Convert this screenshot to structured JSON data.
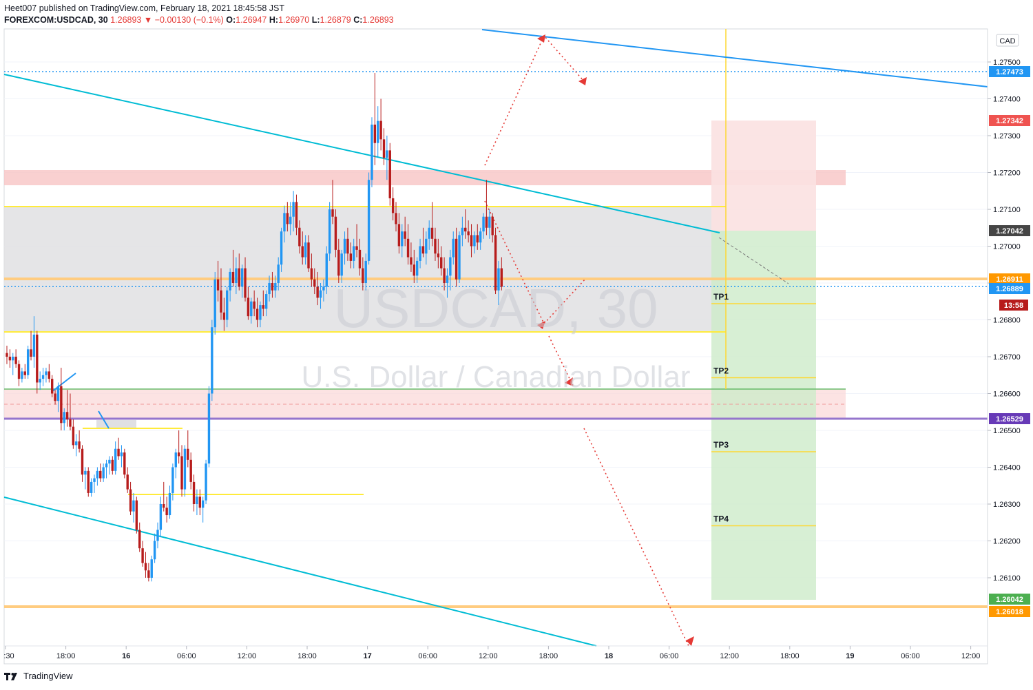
{
  "header": {
    "line1": "Heet007 published on TradingView.com, February 18, 2021 18:45:58 JST",
    "symbol": "FOREXCOM:USDCAD, 30",
    "last": "1.26893",
    "change": "−0.00130 (−0.1%)",
    "o_label": "O:",
    "o": "1.26947",
    "h_label": "H:",
    "h": "1.26970",
    "l_label": "L:",
    "l": "1.26879",
    "c_label": "C:",
    "c": "1.26893"
  },
  "watermark": {
    "line1": "USDCAD, 30",
    "line2": "U.S. Dollar / Canadian Dollar"
  },
  "footer": {
    "brand": "TradingView"
  },
  "colors": {
    "up": "#2196f3",
    "down": "#b71c1c",
    "trend": "#00bcd4",
    "yellow": "#ffeb3b",
    "orange": "#ffb74d",
    "purple": "#9575cd",
    "green_zone": "#c8e6c9",
    "red_zone": "#ffcdd2"
  },
  "chart_data": {
    "type": "candlestick",
    "currency": "CAD",
    "ylim": [
      1.2562,
      1.2754
    ],
    "y_ticks": [
      "1.27500",
      "1.27400",
      "1.27300",
      "1.27200",
      "1.27100",
      "1.27000",
      "1.26900",
      "1.26800",
      "1.26700",
      "1.26600",
      "1.26500",
      "1.26400",
      "1.26300",
      "1.26200",
      "1.26100"
    ],
    "x_ticks": [
      ":30",
      "18:00",
      "16",
      "06:00",
      "12:00",
      "18:00",
      "17",
      "06:00",
      "12:00",
      "18:00",
      "18",
      "06:00",
      "12:00",
      "18:00",
      "19",
      "06:00",
      "12:00"
    ],
    "price_tags": [
      {
        "label": "1.27473",
        "value": 1.27473,
        "color": "#2196f3"
      },
      {
        "label": "1.27342",
        "value": 1.27342,
        "color": "#ef5350"
      },
      {
        "label": "1.27042",
        "value": 1.27042,
        "color": "#454545"
      },
      {
        "label": "1.26911",
        "value": 1.26911,
        "color": "#ff9800"
      },
      {
        "label": "1.26889",
        "value": 1.26889,
        "color": "#2196f3"
      },
      {
        "label": "13:58",
        "value": 1.2686,
        "color": "#b71c1c"
      },
      {
        "label": "1.26529",
        "value": 1.26529,
        "color": "#673ab7"
      },
      {
        "label": "1.26042",
        "value": 1.26042,
        "color": "#4caf50"
      },
      {
        "label": "1.26018",
        "value": 1.26018,
        "color": "#ff9800"
      }
    ],
    "targets": [
      {
        "label": "TP1",
        "value": 1.2685
      },
      {
        "label": "TP2",
        "value": 1.2665
      },
      {
        "label": "TP3",
        "value": 1.2645
      },
      {
        "label": "TP4",
        "value": 1.2625
      }
    ],
    "candles": [
      [
        1.2671,
        1.2673,
        1.2668,
        1.267
      ],
      [
        1.267,
        1.2672,
        1.2667,
        1.2669
      ],
      [
        1.2669,
        1.2671,
        1.2665,
        1.267
      ],
      [
        1.267,
        1.2672,
        1.2667,
        1.2668
      ],
      [
        1.2668,
        1.2669,
        1.2662,
        1.2664
      ],
      [
        1.2664,
        1.2667,
        1.2663,
        1.2666
      ],
      [
        1.2666,
        1.2668,
        1.2664,
        1.2665
      ],
      [
        1.2665,
        1.2673,
        1.2664,
        1.2672
      ],
      [
        1.2672,
        1.2677,
        1.2669,
        1.267
      ],
      [
        1.267,
        1.2681,
        1.2667,
        1.2676
      ],
      [
        1.2676,
        1.2677,
        1.266,
        1.2663
      ],
      [
        1.2663,
        1.2666,
        1.2661,
        1.2664
      ],
      [
        1.2664,
        1.2667,
        1.2662,
        1.2665
      ],
      [
        1.2665,
        1.2667,
        1.2663,
        1.2666
      ],
      [
        1.2666,
        1.2668,
        1.2663,
        1.2664
      ],
      [
        1.2664,
        1.2665,
        1.2659,
        1.266
      ],
      [
        1.266,
        1.2661,
        1.2657,
        1.2658
      ],
      [
        1.2658,
        1.2663,
        1.2655,
        1.2662
      ],
      [
        1.2662,
        1.2667,
        1.265,
        1.2652
      ],
      [
        1.2652,
        1.2656,
        1.265,
        1.2655
      ],
      [
        1.2655,
        1.2661,
        1.2651,
        1.2653
      ],
      [
        1.2653,
        1.266,
        1.265,
        1.2651
      ],
      [
        1.2651,
        1.2653,
        1.2645,
        1.2646
      ],
      [
        1.2646,
        1.2649,
        1.2643,
        1.2647
      ],
      [
        1.2647,
        1.265,
        1.2644,
        1.2645
      ],
      [
        1.2645,
        1.2646,
        1.2636,
        1.2638
      ],
      [
        1.2638,
        1.264,
        1.2634,
        1.2639
      ],
      [
        1.2639,
        1.264,
        1.2632,
        1.2633
      ],
      [
        1.2633,
        1.2637,
        1.2632,
        1.2636
      ],
      [
        1.2636,
        1.2638,
        1.2633,
        1.2637
      ],
      [
        1.2637,
        1.264,
        1.2635,
        1.2639
      ],
      [
        1.2639,
        1.2641,
        1.2636,
        1.2637
      ],
      [
        1.2637,
        1.2641,
        1.2636,
        1.264
      ],
      [
        1.264,
        1.2642,
        1.2637,
        1.2641
      ],
      [
        1.2641,
        1.2643,
        1.2638,
        1.2642
      ],
      [
        1.2642,
        1.2643,
        1.2638,
        1.2639
      ],
      [
        1.2639,
        1.2647,
        1.2638,
        1.2645
      ],
      [
        1.2645,
        1.2648,
        1.2642,
        1.2643
      ],
      [
        1.2643,
        1.2646,
        1.264,
        1.2644
      ],
      [
        1.2644,
        1.2645,
        1.2637,
        1.2638
      ],
      [
        1.2638,
        1.264,
        1.2633,
        1.2634
      ],
      [
        1.2634,
        1.2636,
        1.2627,
        1.2628
      ],
      [
        1.2628,
        1.2633,
        1.2625,
        1.2631
      ],
      [
        1.2631,
        1.2632,
        1.2622,
        1.2623
      ],
      [
        1.2623,
        1.2625,
        1.2617,
        1.2618
      ],
      [
        1.2618,
        1.262,
        1.2613,
        1.2614
      ],
      [
        1.2614,
        1.2617,
        1.261,
        1.2612
      ],
      [
        1.2612,
        1.2614,
        1.2609,
        1.261
      ],
      [
        1.261,
        1.2616,
        1.2609,
        1.2615
      ],
      [
        1.2615,
        1.2622,
        1.2614,
        1.262
      ],
      [
        1.262,
        1.2625,
        1.2618,
        1.2623
      ],
      [
        1.2623,
        1.2632,
        1.2621,
        1.263
      ],
      [
        1.263,
        1.2636,
        1.2628,
        1.2629
      ],
      [
        1.2629,
        1.2632,
        1.2625,
        1.2627
      ],
      [
        1.2627,
        1.2635,
        1.2626,
        1.2633
      ],
      [
        1.2633,
        1.2641,
        1.2631,
        1.264
      ],
      [
        1.264,
        1.2645,
        1.2637,
        1.2644
      ],
      [
        1.2644,
        1.265,
        1.2641,
        1.2643
      ],
      [
        1.2643,
        1.2646,
        1.2632,
        1.2634
      ],
      [
        1.2634,
        1.2646,
        1.2632,
        1.2645
      ],
      [
        1.2645,
        1.265,
        1.264,
        1.2642
      ],
      [
        1.2642,
        1.2644,
        1.2634,
        1.2636
      ],
      [
        1.2636,
        1.2638,
        1.2628,
        1.263
      ],
      [
        1.263,
        1.2634,
        1.2627,
        1.2632
      ],
      [
        1.2632,
        1.2634,
        1.2627,
        1.2629
      ],
      [
        1.2629,
        1.2632,
        1.2625,
        1.2631
      ],
      [
        1.2631,
        1.2642,
        1.263,
        1.2641
      ],
      [
        1.2641,
        1.2662,
        1.264,
        1.266
      ],
      [
        1.266,
        1.268,
        1.2658,
        1.2678
      ],
      [
        1.2678,
        1.2693,
        1.2676,
        1.2691
      ],
      [
        1.2691,
        1.2696,
        1.2685,
        1.2688
      ],
      [
        1.2688,
        1.2694,
        1.268,
        1.2682
      ],
      [
        1.2682,
        1.2686,
        1.2677,
        1.268
      ],
      [
        1.268,
        1.2689,
        1.2678,
        1.2688
      ],
      [
        1.2688,
        1.2694,
        1.2685,
        1.2693
      ],
      [
        1.2693,
        1.2699,
        1.2689,
        1.269
      ],
      [
        1.269,
        1.2697,
        1.2687,
        1.2694
      ],
      [
        1.2694,
        1.2698,
        1.2688,
        1.2689
      ],
      [
        1.2689,
        1.2695,
        1.2686,
        1.2694
      ],
      [
        1.2694,
        1.2697,
        1.2685,
        1.2686
      ],
      [
        1.2686,
        1.2689,
        1.268,
        1.2681
      ],
      [
        1.2681,
        1.2686,
        1.2679,
        1.2685
      ],
      [
        1.2685,
        1.2688,
        1.2681,
        1.2683
      ],
      [
        1.2683,
        1.2686,
        1.2678,
        1.268
      ],
      [
        1.268,
        1.2685,
        1.2678,
        1.2684
      ],
      [
        1.2684,
        1.2688,
        1.2681,
        1.2683
      ],
      [
        1.2683,
        1.2688,
        1.2681,
        1.2687
      ],
      [
        1.2687,
        1.2692,
        1.2685,
        1.269
      ],
      [
        1.269,
        1.2693,
        1.2686,
        1.2688
      ],
      [
        1.2688,
        1.2692,
        1.2686,
        1.269
      ],
      [
        1.269,
        1.2697,
        1.2688,
        1.2695
      ],
      [
        1.2695,
        1.2705,
        1.2693,
        1.2704
      ],
      [
        1.2704,
        1.2711,
        1.2701,
        1.2709
      ],
      [
        1.2709,
        1.2712,
        1.2704,
        1.2706
      ],
      [
        1.2706,
        1.2712,
        1.2703,
        1.2708
      ],
      [
        1.2708,
        1.2715,
        1.2704,
        1.2712
      ],
      [
        1.2712,
        1.2714,
        1.2703,
        1.2705
      ],
      [
        1.2705,
        1.2707,
        1.2698,
        1.27
      ],
      [
        1.27,
        1.2704,
        1.2695,
        1.2697
      ],
      [
        1.2697,
        1.2703,
        1.2695,
        1.2701
      ],
      [
        1.2701,
        1.2703,
        1.2693,
        1.2694
      ],
      [
        1.2694,
        1.2698,
        1.2689,
        1.2691
      ],
      [
        1.2691,
        1.2694,
        1.2687,
        1.2689
      ],
      [
        1.2689,
        1.2693,
        1.2684,
        1.2686
      ],
      [
        1.2686,
        1.269,
        1.2683,
        1.2688
      ],
      [
        1.2688,
        1.2691,
        1.2685,
        1.2689
      ],
      [
        1.2689,
        1.27,
        1.2687,
        1.2698
      ],
      [
        1.2698,
        1.2712,
        1.2696,
        1.271
      ],
      [
        1.271,
        1.2718,
        1.2706,
        1.2708
      ],
      [
        1.2708,
        1.271,
        1.2697,
        1.2699
      ],
      [
        1.2699,
        1.2702,
        1.269,
        1.2692
      ],
      [
        1.2692,
        1.2699,
        1.269,
        1.2698
      ],
      [
        1.2698,
        1.2704,
        1.2695,
        1.2702
      ],
      [
        1.2702,
        1.2705,
        1.2696,
        1.2698
      ],
      [
        1.2698,
        1.2701,
        1.2694,
        1.2696
      ],
      [
        1.2696,
        1.2702,
        1.2694,
        1.27
      ],
      [
        1.27,
        1.2706,
        1.2697,
        1.2699
      ],
      [
        1.2699,
        1.2702,
        1.2692,
        1.2694
      ],
      [
        1.2694,
        1.2697,
        1.2688,
        1.269
      ],
      [
        1.269,
        1.2698,
        1.2688,
        1.2696
      ],
      [
        1.2696,
        1.272,
        1.2695,
        1.2718
      ],
      [
        1.2718,
        1.2735,
        1.2716,
        1.2733
      ],
      [
        1.2733,
        1.2747,
        1.2722,
        1.2728
      ],
      [
        1.2728,
        1.2738,
        1.2724,
        1.2734
      ],
      [
        1.2734,
        1.274,
        1.2726,
        1.2729
      ],
      [
        1.2729,
        1.2732,
        1.2722,
        1.2724
      ],
      [
        1.2724,
        1.273,
        1.2718,
        1.2726
      ],
      [
        1.2726,
        1.2728,
        1.2711,
        1.2713
      ],
      [
        1.2713,
        1.2716,
        1.2707,
        1.2709
      ],
      [
        1.2709,
        1.2712,
        1.2704,
        1.2706
      ],
      [
        1.2706,
        1.2709,
        1.2698,
        1.27
      ],
      [
        1.27,
        1.2706,
        1.2697,
        1.2704
      ],
      [
        1.2704,
        1.2708,
        1.27,
        1.2702
      ],
      [
        1.2702,
        1.2706,
        1.2695,
        1.2697
      ],
      [
        1.2697,
        1.2701,
        1.2693,
        1.2695
      ],
      [
        1.2695,
        1.2699,
        1.269,
        1.2692
      ],
      [
        1.2692,
        1.2697,
        1.269,
        1.2696
      ],
      [
        1.2696,
        1.2702,
        1.2694,
        1.27
      ],
      [
        1.27,
        1.2705,
        1.2697,
        1.2698
      ],
      [
        1.2698,
        1.2704,
        1.2695,
        1.2702
      ],
      [
        1.2702,
        1.2707,
        1.2699,
        1.2705
      ],
      [
        1.2705,
        1.2712,
        1.27,
        1.2702
      ],
      [
        1.2702,
        1.2705,
        1.2696,
        1.2698
      ],
      [
        1.2698,
        1.2702,
        1.2694,
        1.2697
      ],
      [
        1.2697,
        1.27,
        1.2692,
        1.2694
      ],
      [
        1.2694,
        1.2697,
        1.2688,
        1.269
      ],
      [
        1.269,
        1.2694,
        1.2686,
        1.2692
      ],
      [
        1.2692,
        1.2699,
        1.2688,
        1.2697
      ],
      [
        1.2697,
        1.2704,
        1.2695,
        1.2702
      ],
      [
        1.2702,
        1.2705,
        1.2689,
        1.2691
      ],
      [
        1.2691,
        1.2704,
        1.269,
        1.2703
      ],
      [
        1.2703,
        1.2708,
        1.27,
        1.2705
      ],
      [
        1.2705,
        1.271,
        1.2702,
        1.2704
      ],
      [
        1.2704,
        1.2707,
        1.2701,
        1.2703
      ],
      [
        1.2703,
        1.2706,
        1.2697,
        1.27
      ],
      [
        1.27,
        1.2704,
        1.2698,
        1.2703
      ],
      [
        1.2703,
        1.2706,
        1.2699,
        1.2701
      ],
      [
        1.2701,
        1.2705,
        1.2699,
        1.2704
      ],
      [
        1.2704,
        1.2709,
        1.2702,
        1.2708
      ],
      [
        1.2708,
        1.2718,
        1.2703,
        1.2705
      ],
      [
        1.2705,
        1.271,
        1.2702,
        1.2708
      ],
      [
        1.2708,
        1.2709,
        1.2701,
        1.2703
      ],
      [
        1.2703,
        1.2705,
        1.2687,
        1.2688
      ],
      [
        1.2688,
        1.2696,
        1.2684,
        1.2694
      ],
      [
        1.2694,
        1.2697,
        1.2688,
        1.2689
      ]
    ]
  }
}
